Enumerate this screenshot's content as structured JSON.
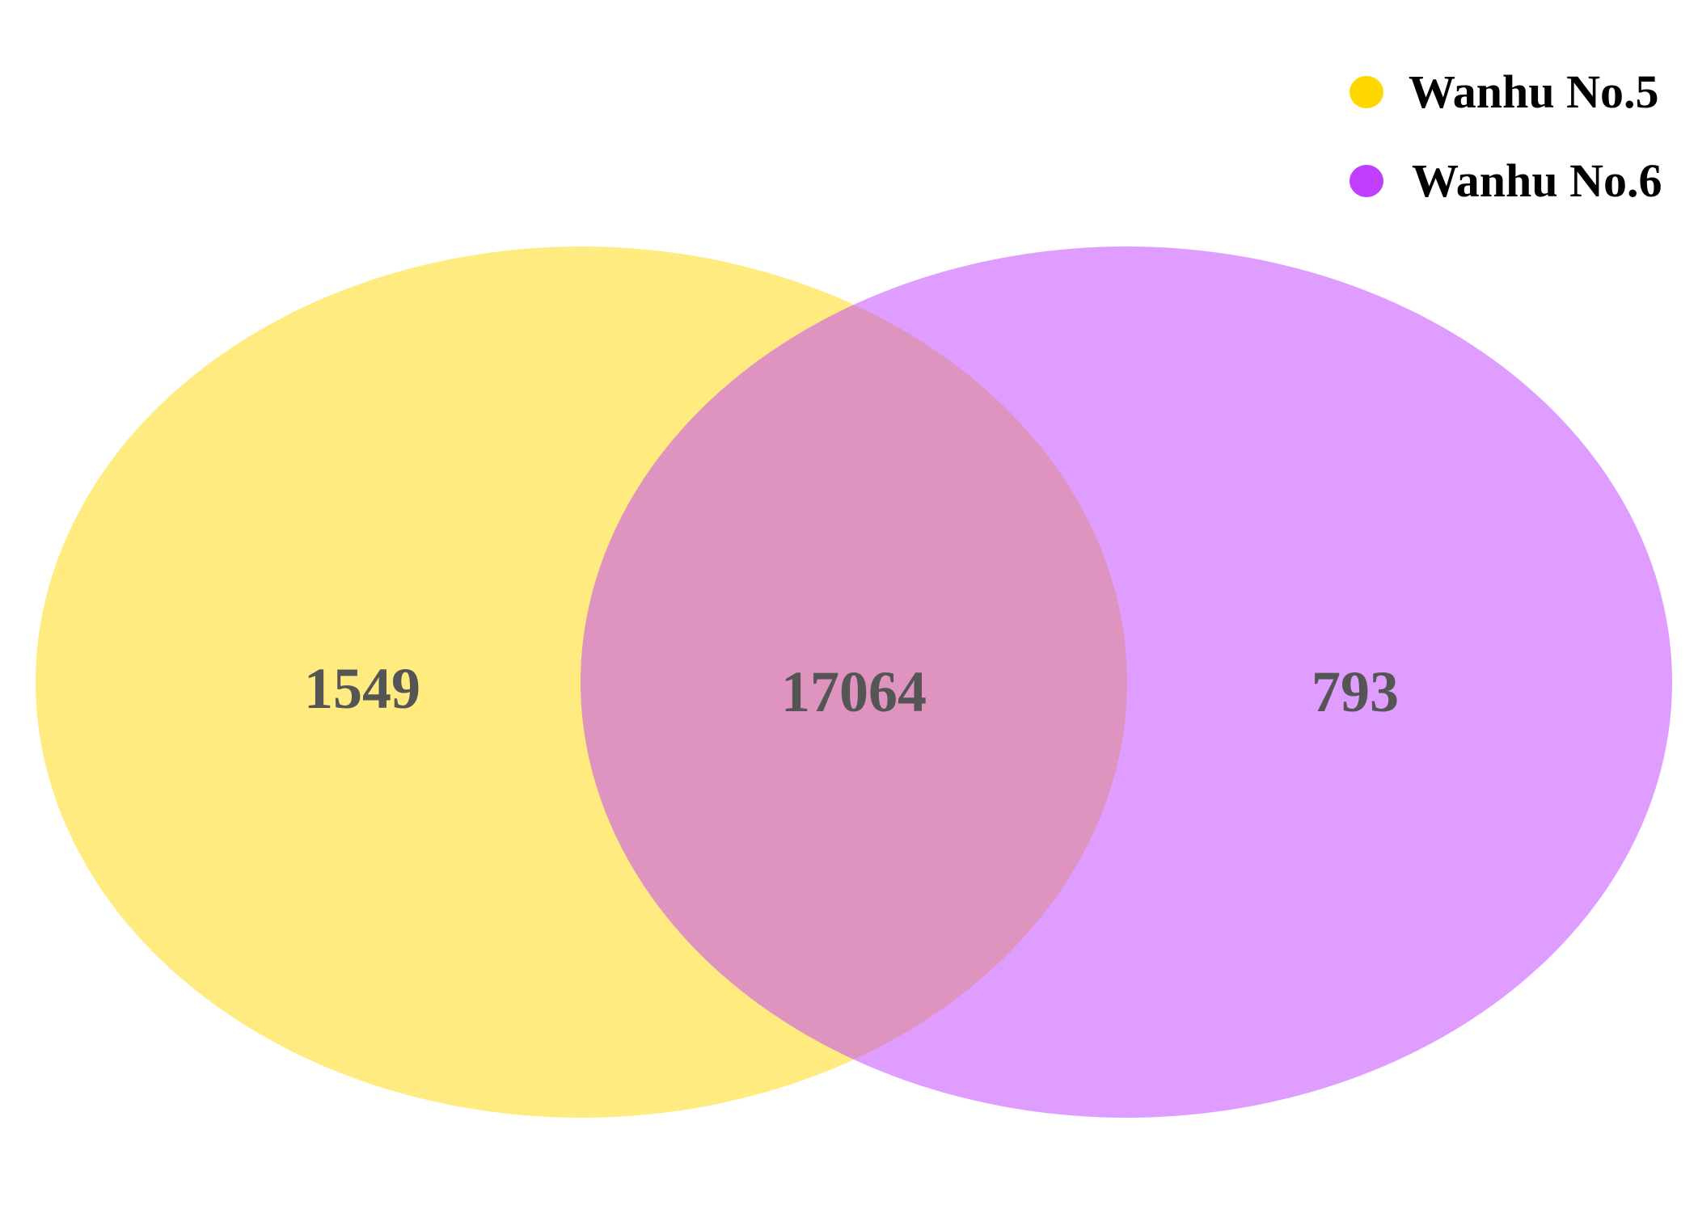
{
  "legend": [
    {
      "label": "Wanhu No.5",
      "color": "#FFD700"
    },
    {
      "label": "Wanhu No.6",
      "color": "#BF3EFF"
    }
  ],
  "sets": [
    {
      "name": "Wanhu No.5",
      "color": "#FFD700",
      "only_count": "1549"
    },
    {
      "name": "Wanhu No.6",
      "color": "#BF3EFF",
      "only_count": "793"
    }
  ],
  "intersection": {
    "count": "17064"
  },
  "text_color": "#555555"
}
